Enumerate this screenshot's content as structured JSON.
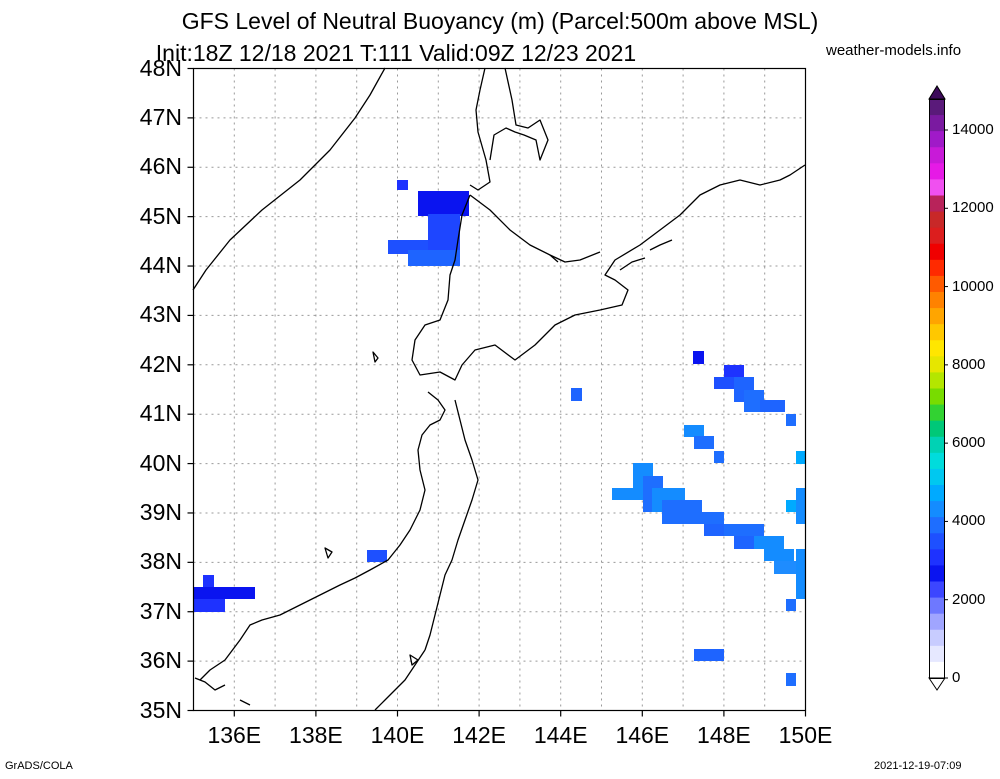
{
  "header": {
    "title_line1": "GFS Level of Neutral Buoyancy (m) (Parcel:500m above MSL)",
    "title_line2": "Init:18Z 12/18 2021 T:111 Valid:09Z 12/23 2021",
    "credit": "weather-models.info"
  },
  "footer": {
    "left": "GrADS/COLA",
    "right": "2021-12-19-07:09"
  },
  "map": {
    "lat_labels": [
      "48N",
      "47N",
      "46N",
      "45N",
      "44N",
      "43N",
      "42N",
      "41N",
      "40N",
      "39N",
      "38N",
      "37N",
      "36N",
      "35N"
    ],
    "lon_labels": [
      "136E",
      "138E",
      "140E",
      "142E",
      "144E",
      "146E",
      "148E",
      "150E"
    ]
  },
  "colorbar": {
    "labels": [
      "14000",
      "12000",
      "10000",
      "8000",
      "6000",
      "4000",
      "2000",
      "0"
    ],
    "colors": [
      "#5a1a7a",
      "#7a1aa0",
      "#a01ac8",
      "#c81ad8",
      "#e61ae6",
      "#f050f0",
      "#b8235a",
      "#c82828",
      "#dc1e1e",
      "#f00000",
      "#ff2a00",
      "#ff5a00",
      "#ff8200",
      "#ffa500",
      "#ffc800",
      "#ffe600",
      "#e6e600",
      "#b4e600",
      "#78dc00",
      "#32d232",
      "#00c878",
      "#00d2b4",
      "#00dcdc",
      "#00c8f0",
      "#00aaff",
      "#148cff",
      "#1e6eff",
      "#1e50ff",
      "#1e32ff",
      "#0a14f0",
      "#3c46ff",
      "#6e78ff",
      "#a0a5ff",
      "#c8ccff",
      "#e6e8ff",
      "#ffffff"
    ]
  }
}
